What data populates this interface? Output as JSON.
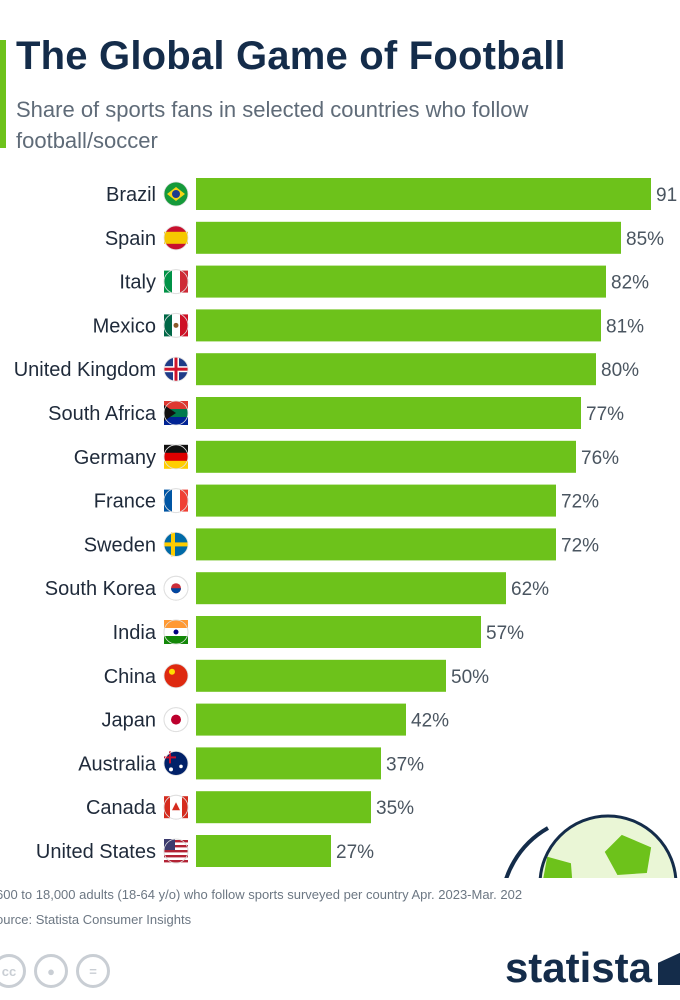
{
  "header": {
    "title": "The Global Game of Football",
    "subtitle": "Share of sports fans in selected countries who follow football/soccer"
  },
  "colors": {
    "accent": "#6dc21b",
    "bar": "#6dc21b",
    "title": "#142c4a",
    "text": "#1f2a3a",
    "label": "#4a5560"
  },
  "chart_data": {
    "type": "bar",
    "orientation": "horizontal",
    "categories": [
      "Brazil",
      "Spain",
      "Italy",
      "Mexico",
      "United Kingdom",
      "South Africa",
      "Germany",
      "France",
      "Sweden",
      "South Korea",
      "India",
      "China",
      "Japan",
      "Australia",
      "Canada",
      "United States"
    ],
    "values": [
      91,
      85,
      82,
      81,
      80,
      77,
      76,
      72,
      72,
      62,
      57,
      50,
      42,
      37,
      35,
      27
    ],
    "value_labels": [
      "91",
      "85%",
      "82%",
      "81%",
      "80%",
      "77%",
      "76%",
      "72%",
      "72%",
      "62%",
      "57%",
      "50%",
      "42%",
      "37%",
      "35%",
      "27%"
    ],
    "flag_icons": [
      "brazil-flag-icon",
      "spain-flag-icon",
      "italy-flag-icon",
      "mexico-flag-icon",
      "united-kingdom-flag-icon",
      "south-africa-flag-icon",
      "germany-flag-icon",
      "france-flag-icon",
      "sweden-flag-icon",
      "south-korea-flag-icon",
      "india-flag-icon",
      "china-flag-icon",
      "japan-flag-icon",
      "australia-flag-icon",
      "canada-flag-icon",
      "united-states-flag-icon"
    ],
    "xlim": [
      0,
      100
    ],
    "unit": "%",
    "grid": false,
    "legend": "none"
  },
  "footnote": {
    "sample": "600 to 18,000 adults (18-64 y/o) who follow sports surveyed per country Apr. 2023-Mar. 202",
    "source": "ource: Statista Consumer Insights"
  },
  "license_icons": [
    "cc-icon",
    "by-icon",
    "nd-icon"
  ],
  "brand": {
    "name": "statista"
  }
}
